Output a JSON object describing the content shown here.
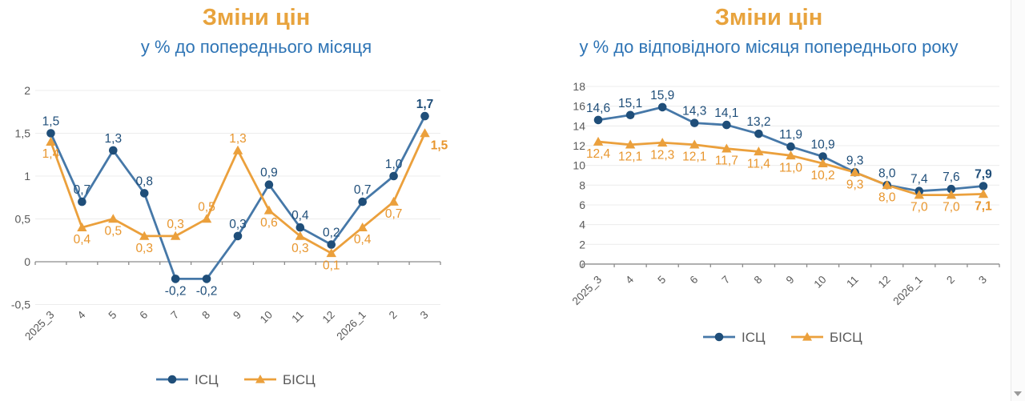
{
  "colors": {
    "title": "#E8A33D",
    "subtitle": "#2E74B5",
    "axis": "#8C8C8C",
    "tick_text": "#595959",
    "grid": "#ECECEC",
    "legend_text": "#595959",
    "cpi_line": "#4678A8",
    "cpi_marker": "#1F4E79",
    "core_line": "#EBA03C",
    "core_label": "#E8962E"
  },
  "icons": {
    "scroll_down": "scroll-down-triangle"
  },
  "chart_data": [
    {
      "type": "line",
      "title": "Зміни цін",
      "subtitle": "у % до попереднього місяця",
      "categories": [
        "2025_3",
        "4",
        "5",
        "6",
        "7",
        "8",
        "9",
        "10",
        "11",
        "12",
        "2026_1",
        "2",
        "3"
      ],
      "ylim": [
        -0.5,
        2
      ],
      "grid": true,
      "legend_position": "bottom",
      "yticks": [
        {
          "v": 2,
          "label": "2"
        },
        {
          "v": 1.5,
          "label": "1,5"
        },
        {
          "v": 1,
          "label": "1"
        },
        {
          "v": 0.5,
          "label": "0,5"
        },
        {
          "v": 0,
          "label": "0"
        },
        {
          "v": -0.5,
          "label": "-0,5"
        }
      ],
      "series": [
        {
          "name": "ІСЦ",
          "marker": "circle",
          "color": "#4678A8",
          "marker_color": "#1F4E79",
          "label_color": "#1F4E79",
          "values": [
            1.5,
            0.7,
            1.3,
            0.8,
            -0.2,
            -0.2,
            0.3,
            0.9,
            0.4,
            0.2,
            0.7,
            1.0,
            1.7
          ],
          "label_side": "above",
          "label_side_overrides": {
            "4": "below",
            "5": "below"
          },
          "bold_last": true
        },
        {
          "name": "БІСЦ",
          "marker": "triangle",
          "color": "#EBA03C",
          "marker_color": "#EBA03C",
          "label_color": "#E8962E",
          "values": [
            1.4,
            0.4,
            0.5,
            0.3,
            0.3,
            0.5,
            1.3,
            0.6,
            0.3,
            0.1,
            0.4,
            0.7,
            1.5
          ],
          "label_side": "below",
          "label_side_overrides": {
            "4": "above",
            "5": "above",
            "6": "above"
          },
          "label_dx_overrides": {
            "12": 18
          },
          "bold_last": true
        }
      ]
    },
    {
      "type": "line",
      "title": "Зміни цін",
      "subtitle": "у % до відповідного місяця попереднього року",
      "categories": [
        "2025_3",
        "4",
        "5",
        "6",
        "7",
        "8",
        "9",
        "10",
        "11",
        "12",
        "2026_1",
        "2",
        "3"
      ],
      "ylim": [
        0,
        18
      ],
      "grid": true,
      "legend_position": "bottom",
      "yticks": [
        {
          "v": 18,
          "label": "18"
        },
        {
          "v": 16,
          "label": "16"
        },
        {
          "v": 14,
          "label": "14"
        },
        {
          "v": 12,
          "label": "12"
        },
        {
          "v": 10,
          "label": "10"
        },
        {
          "v": 8,
          "label": "8"
        },
        {
          "v": 6,
          "label": "6"
        },
        {
          "v": 4,
          "label": "4"
        },
        {
          "v": 2,
          "label": "2"
        },
        {
          "v": 0,
          "label": "0"
        }
      ],
      "series": [
        {
          "name": "ІСЦ",
          "marker": "circle",
          "color": "#4678A8",
          "marker_color": "#1F4E79",
          "label_color": "#1F4E79",
          "values": [
            14.6,
            15.1,
            15.9,
            14.3,
            14.1,
            13.2,
            11.9,
            10.9,
            9.3,
            8.0,
            7.4,
            7.6,
            7.9
          ],
          "label_side": "above",
          "label_side_overrides": {},
          "bold_last": true
        },
        {
          "name": "БІСЦ",
          "marker": "triangle",
          "color": "#EBA03C",
          "marker_color": "#EBA03C",
          "label_color": "#E8962E",
          "values": [
            12.4,
            12.1,
            12.3,
            12.1,
            11.7,
            11.4,
            11.0,
            10.2,
            9.3,
            8.0,
            7.0,
            7.0,
            7.1
          ],
          "label_side": "below",
          "label_side_overrides": {},
          "bold_last": true
        }
      ]
    }
  ]
}
